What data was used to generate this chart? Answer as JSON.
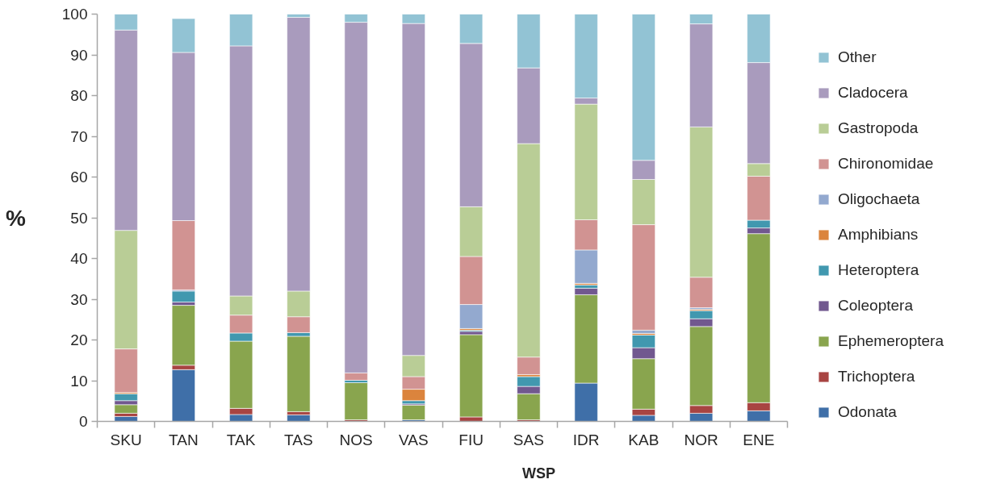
{
  "chart_data": {
    "type": "bar",
    "stacked": true,
    "xlabel": "WSP",
    "ylabel": "%",
    "categories": [
      "SKU",
      "TAN",
      "TAK",
      "TAS",
      "NOS",
      "VAS",
      "FIU",
      "SAS",
      "IDR",
      "KAB",
      "NOR",
      "ENE"
    ],
    "ylim": [
      0,
      100
    ],
    "yticks": [
      0,
      10,
      20,
      30,
      40,
      50,
      60,
      70,
      80,
      90,
      100
    ],
    "legend": "right",
    "series": [
      {
        "name": "Odonata",
        "color": "#3f6fa8",
        "values": [
          1.2,
          12.7,
          1.7,
          1.6,
          0,
          0.4,
          0,
          0,
          9.4,
          1.5,
          2.0,
          2.6
        ]
      },
      {
        "name": "Trichoptera",
        "color": "#a84442",
        "values": [
          0.8,
          1.1,
          1.5,
          0.8,
          0.4,
          0,
          1.1,
          0.4,
          0,
          1.5,
          1.9,
          2.0
        ]
      },
      {
        "name": "Ephemeroptera",
        "color": "#89a54e",
        "values": [
          2.1,
          14.7,
          16.5,
          18.5,
          9.1,
          3.6,
          20.2,
          6.4,
          21.7,
          12.4,
          19.4,
          41.5
        ]
      },
      {
        "name": "Coleoptera",
        "color": "#71588f",
        "values": [
          1.0,
          0.8,
          0,
          0,
          0,
          0.3,
          0.8,
          1.8,
          1.6,
          2.7,
          1.9,
          1.4
        ]
      },
      {
        "name": "Heteroptera",
        "color": "#4198af",
        "values": [
          1.7,
          2.7,
          2.0,
          0.9,
          0.6,
          0.8,
          0.3,
          2.4,
          0.8,
          3.1,
          2.0,
          1.9
        ]
      },
      {
        "name": "Amphibians",
        "color": "#db843d",
        "values": [
          0.3,
          0,
          0,
          0,
          0,
          2.8,
          0.4,
          0.5,
          0.4,
          0.4,
          0.3,
          0
        ]
      },
      {
        "name": "Oligochaeta",
        "color": "#93a9cf",
        "values": [
          0,
          0.3,
          0,
          0,
          0,
          0,
          5.9,
          0,
          8.2,
          0.8,
          0.4,
          0
        ]
      },
      {
        "name": "Chironomidae",
        "color": "#d19392",
        "values": [
          10.7,
          17.0,
          4.4,
          3.9,
          1.8,
          3.1,
          11.8,
          4.3,
          7.4,
          25.9,
          7.5,
          10.8
        ]
      },
      {
        "name": "Gastropoda",
        "color": "#b9cd96",
        "values": [
          29.1,
          0,
          4.7,
          6.3,
          0,
          5.2,
          12.2,
          52.4,
          28.4,
          11.1,
          36.9,
          3.1
        ]
      },
      {
        "name": "Cladocera",
        "color": "#a99bbd",
        "values": [
          49.2,
          41.3,
          61.4,
          67.2,
          86.1,
          81.5,
          40.1,
          18.6,
          1.5,
          4.7,
          25.3,
          24.8
        ]
      },
      {
        "name": "Other",
        "color": "#92c3d4",
        "values": [
          3.9,
          8.3,
          7.8,
          0.8,
          2.0,
          2.3,
          7.2,
          13.2,
          20.6,
          35.9,
          2.4,
          11.9
        ]
      }
    ]
  }
}
